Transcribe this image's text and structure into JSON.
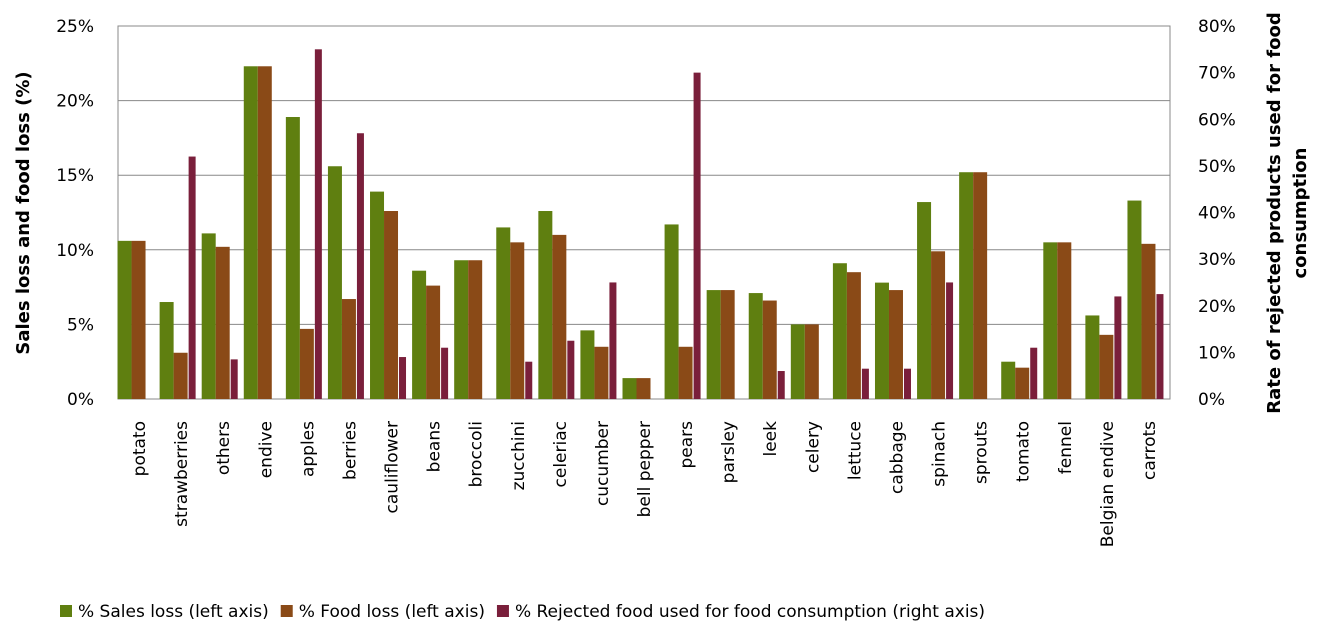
{
  "chart_data": {
    "type": "bar",
    "categories": [
      "potato",
      "strawberries",
      "others",
      "endive",
      "apples",
      "berries",
      "cauliflower",
      "beans",
      "broccoli",
      "zucchini",
      "celeriac",
      "cucumber",
      "bell pepper",
      "pears",
      "parsley",
      "leek",
      "celery",
      "lettuce",
      "cabbage",
      "spinach",
      "sprouts",
      "tomato",
      "fennel",
      "Belgian endive",
      "carrots"
    ],
    "series": [
      {
        "name": "% Sales loss (left axis)",
        "axis": "left",
        "color": "#5f7f10",
        "values": [
          10.6,
          6.5,
          11.1,
          22.3,
          18.9,
          15.6,
          13.9,
          8.6,
          9.3,
          11.5,
          12.6,
          4.6,
          1.4,
          11.7,
          7.3,
          7.1,
          5.0,
          9.1,
          7.8,
          13.2,
          15.2,
          2.5,
          10.5,
          5.6,
          13.3
        ]
      },
      {
        "name": "% Food loss (left axis)",
        "axis": "left",
        "color": "#8a4a17",
        "values": [
          10.6,
          3.1,
          10.2,
          22.3,
          4.7,
          6.7,
          12.6,
          7.6,
          9.3,
          10.5,
          11.0,
          3.5,
          1.4,
          3.5,
          7.3,
          6.6,
          5.0,
          8.5,
          7.3,
          9.9,
          15.2,
          2.1,
          10.5,
          4.3,
          10.4
        ]
      },
      {
        "name": "% Rejected food used for food consumption (right axis)",
        "axis": "right",
        "color": "#7a1f3b",
        "values": [
          null,
          52,
          8.5,
          null,
          75,
          57,
          9,
          11,
          null,
          8,
          12.5,
          25,
          null,
          70,
          null,
          6,
          null,
          6.5,
          6.5,
          25,
          null,
          11,
          null,
          22,
          22.5
        ]
      }
    ],
    "ylabel": "Sales loss and food loss (%)",
    "y2label": "Rate of rejected products used for food consumption",
    "ylim": [
      0,
      25
    ],
    "y2lim": [
      0,
      80
    ],
    "yticks": [
      "0%",
      "5%",
      "10%",
      "15%",
      "20%",
      "25%"
    ],
    "y2ticks": [
      "0%",
      "10%",
      "20%",
      "30%",
      "40%",
      "50%",
      "60%",
      "70%",
      "80%"
    ],
    "grid": true,
    "legend_position": "bottom"
  }
}
